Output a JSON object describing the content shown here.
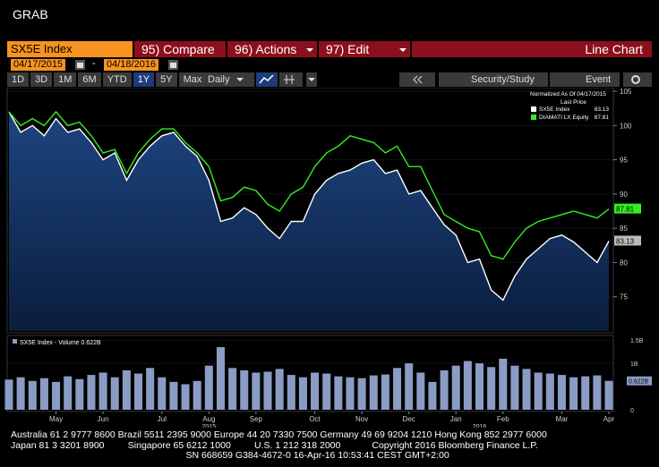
{
  "header": {
    "title": "GRAB"
  },
  "toolbar": {
    "security": "SX5E Index",
    "compare": "95) Compare",
    "actions": "96) Actions",
    "edit": "97) Edit",
    "view": "Line Chart",
    "start_date": "04/17/2015",
    "date_separator": "-",
    "end_date": "04/18/2016",
    "ranges": [
      "1D",
      "3D",
      "1M",
      "6M",
      "YTD",
      "1Y",
      "5Y",
      "Max"
    ],
    "selected_range": "1Y",
    "frequency": "Daily",
    "security_study": "Security/Study",
    "event": "Event"
  },
  "chart_data": [
    {
      "type": "line",
      "legend_title": "Normalized As Of 04/17/2015",
      "legend_subtitle": "Last Price",
      "categories": [
        null,
        null,
        null,
        null,
        "May",
        null,
        null,
        null,
        "Jun",
        null,
        null,
        null,
        null,
        "Jul",
        null,
        null,
        null,
        "Aug",
        null,
        null,
        null,
        "Sep",
        null,
        null,
        null,
        null,
        "Oct",
        null,
        null,
        null,
        "Nov",
        null,
        null,
        null,
        "Dec",
        null,
        null,
        null,
        "Jan",
        null,
        null,
        null,
        "Feb",
        null,
        null,
        null,
        null,
        "Mar",
        null,
        null,
        null,
        "Apr"
      ],
      "year_labels": [
        "2015",
        "2016"
      ],
      "series": [
        {
          "name": "SX5E Index",
          "color": "#ffffff",
          "fill": "#163566",
          "values": [
            102,
            99,
            100,
            98.5,
            101,
            99,
            99.5,
            97.5,
            95,
            96,
            92,
            95,
            97,
            98.5,
            99,
            97,
            95.5,
            92,
            86,
            86.5,
            88,
            87,
            85,
            83.5,
            86,
            86,
            90,
            92,
            93,
            93.5,
            94.5,
            95,
            93,
            93.5,
            90,
            90.5,
            88,
            85.5,
            84,
            80,
            80.5,
            76,
            74.5,
            78,
            80.5,
            82,
            83.5,
            84,
            83,
            81.5,
            80,
            83.13
          ]
        },
        {
          "name": "DIAMATI LX Equity",
          "color": "#33ee22",
          "values": [
            102,
            100,
            101,
            100,
            102,
            100,
            100.5,
            98.5,
            96,
            96.5,
            93,
            96,
            98,
            99.5,
            99.5,
            97.5,
            96,
            94,
            89,
            89.5,
            91,
            90.5,
            88.5,
            87.5,
            90,
            91,
            94,
            96,
            97,
            98.5,
            98,
            97.5,
            96,
            97,
            94,
            94,
            90.5,
            87,
            86,
            85,
            84.5,
            81,
            80.5,
            83,
            85,
            86,
            86.5,
            87,
            87.5,
            87,
            86.5,
            87.81
          ]
        }
      ],
      "ylim": [
        70,
        105
      ],
      "yticks": [
        75,
        80,
        85,
        90,
        95,
        100,
        105
      ],
      "grid": true
    },
    {
      "type": "bar",
      "title": "SX5E Index - Volume 0.622B",
      "last_value_label": "0.622B",
      "color": "#8a9cc4",
      "values": [
        0.65,
        0.7,
        0.62,
        0.68,
        0.6,
        0.72,
        0.66,
        0.75,
        0.8,
        0.7,
        0.85,
        0.78,
        0.9,
        0.7,
        0.6,
        0.55,
        0.62,
        0.95,
        1.35,
        0.9,
        0.85,
        0.8,
        0.82,
        0.88,
        0.75,
        0.7,
        0.8,
        0.78,
        0.72,
        0.7,
        0.68,
        0.74,
        0.76,
        0.9,
        1.0,
        0.8,
        0.6,
        0.85,
        0.95,
        1.05,
        1.0,
        0.92,
        1.1,
        0.95,
        0.88,
        0.8,
        0.78,
        0.75,
        0.7,
        0.72,
        0.74,
        0.622
      ],
      "ylim": [
        0,
        1.6
      ],
      "yticks": [
        0,
        {
          "value": 1,
          "label": "1B"
        },
        {
          "value": 1.5,
          "label": "1.5B"
        }
      ],
      "grid": true
    }
  ],
  "footer": {
    "lines": [
      "Australia 61 2 9777 8600 Brazil 5511 2395 9000 Europe 44 20 7330 7500 Germany 49 69 9204 1210 Hong Kong 852 2977 6000",
      "Japan 81 3 3201 8900         Singapore 65 6212 1000         U.S. 1 212 318 2000            Copyright 2016 Bloomberg Finance L.P.",
      "                                                                   SN 668659 G384-4672-0 16-Apr-16 10:53:41 CEST GMT+2:00"
    ]
  }
}
